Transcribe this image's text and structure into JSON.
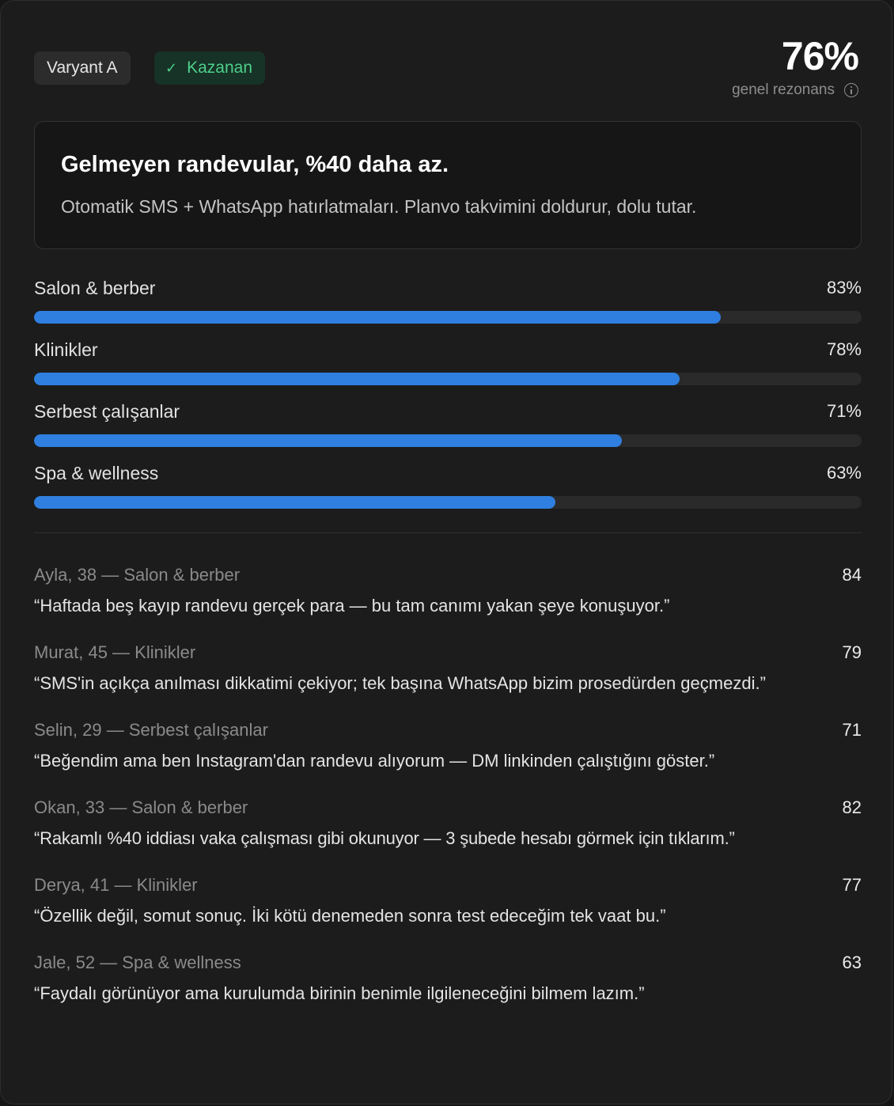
{
  "header": {
    "variant_label": "Varyant A",
    "winner_label": "Kazanan",
    "score_value": "76%",
    "score_label": "genel rezonans"
  },
  "headline": {
    "title": "Gelmeyen randevular, %40 daha az.",
    "subtitle": "Otomatik SMS + WhatsApp hatırlatmaları. Planvo takvimini doldurur, dolu tutar."
  },
  "segments": [
    {
      "label": "Salon & berber",
      "value_text": "83%",
      "value": 83
    },
    {
      "label": "Klinikler",
      "value_text": "78%",
      "value": 78
    },
    {
      "label": "Serbest çalışanlar",
      "value_text": "71%",
      "value": 71
    },
    {
      "label": "Spa & wellness",
      "value_text": "63%",
      "value": 63
    }
  ],
  "quotes": [
    {
      "meta": "Ayla, 38 — Salon & berber",
      "score": "84",
      "text": "“Haftada beş kayıp randevu gerçek para — bu tam canımı yakan şeye konuşuyor.”"
    },
    {
      "meta": "Murat, 45 — Klinikler",
      "score": "79",
      "text": "“SMS'in açıkça anılması dikkatimi çekiyor; tek başına WhatsApp bizim prosedürden geçmezdi.”"
    },
    {
      "meta": "Selin, 29 — Serbest çalışanlar",
      "score": "71",
      "text": "“Beğendim ama ben Instagram'dan randevu alıyorum — DM linkinden çalıştığını göster.”"
    },
    {
      "meta": "Okan, 33 — Salon & berber",
      "score": "82",
      "text": "“Rakamlı %40 iddiası vaka çalışması gibi okunuyor — 3 şubede hesabı görmek için tıklarım.”"
    },
    {
      "meta": "Derya, 41 — Klinikler",
      "score": "77",
      "text": "“Özellik değil, somut sonuç. İki kötü denemeden sonra test edeceğim tek vaat bu.”"
    },
    {
      "meta": "Jale, 52 — Spa & wellness",
      "score": "63",
      "text": "“Faydalı görünüyor ama kurulumda birinin benimle ilgileneceğini bilmem lazım.”"
    }
  ],
  "colors": {
    "accent_bar": "#2f7fe0",
    "winner_text": "#4ccf8a",
    "winner_bg": "#173226"
  },
  "icons": {
    "winner": "check-icon",
    "score_info": "info-icon"
  }
}
